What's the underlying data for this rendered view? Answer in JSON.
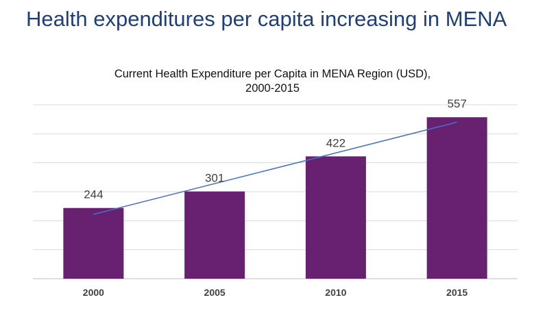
{
  "slide": {
    "title": "Health expenditures per capita increasing in MENA"
  },
  "chart_data": {
    "type": "bar",
    "title": "Current Health Expenditure per Capita in MENA Region (USD),",
    "subtitle": "2000-2015",
    "categories": [
      "2000",
      "2005",
      "2010",
      "2015"
    ],
    "series": [
      {
        "values": [
          244,
          301,
          422,
          557
        ]
      }
    ],
    "data_labels": [
      "244",
      "301",
      "422",
      "557"
    ],
    "ylim": [
      0,
      600
    ],
    "grid": true,
    "y_axis_labels_visible": false,
    "trendline": {
      "type": "linear",
      "color": "#4472c4"
    },
    "colors": {
      "bar": "#682070",
      "grid": "#d9d9d9",
      "trendline": "#4472c4"
    }
  }
}
